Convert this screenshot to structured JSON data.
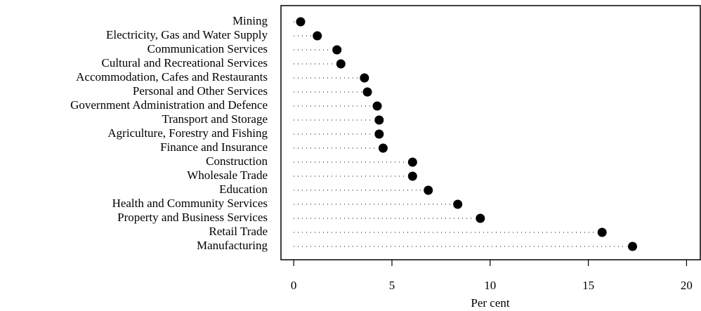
{
  "chart_data": {
    "type": "dot",
    "categories": [
      "Mining",
      "Electricity, Gas and Water Supply",
      "Communication Services",
      "Cultural and Recreational Services",
      "Accommodation, Cafes and Restaurants",
      "Personal and Other Services",
      "Government Administration and Defence",
      "Transport and Storage",
      "Agriculture, Forestry and Fishing",
      "Finance and Insurance",
      "Construction",
      "Wholesale Trade",
      "Education",
      "Health and Community Services",
      "Property and Business Services",
      "Retail Trade",
      "Manufacturing"
    ],
    "values": [
      0.35,
      1.2,
      2.2,
      2.4,
      3.6,
      3.75,
      4.25,
      4.35,
      4.35,
      4.55,
      6.05,
      6.05,
      6.85,
      8.35,
      9.5,
      15.7,
      17.25
    ],
    "color": "#000000",
    "xlim": [
      -0.65,
      20.7
    ],
    "xticks": [
      0,
      5,
      10,
      15,
      20
    ],
    "xlabel": "Per cent"
  }
}
